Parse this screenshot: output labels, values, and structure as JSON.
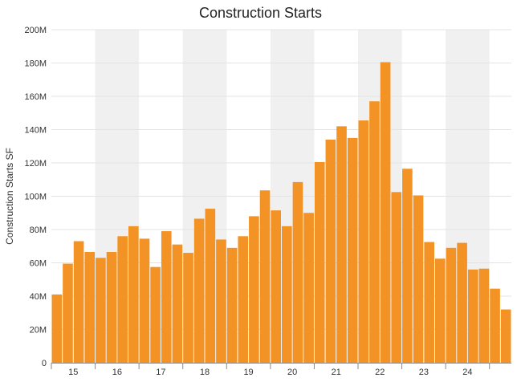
{
  "chart_data": {
    "type": "bar",
    "title": "Construction Starts",
    "xlabel": "",
    "ylabel": "Construction Starts SF",
    "ylim": [
      0,
      200
    ],
    "y_unit_suffix": "M",
    "y_ticks": [
      "0",
      "20M",
      "40M",
      "60M",
      "80M",
      "100M",
      "120M",
      "140M",
      "160M",
      "180M",
      "200M"
    ],
    "x_year_labels": [
      "15",
      "16",
      "17",
      "18",
      "19",
      "20",
      "21",
      "22",
      "23",
      "24"
    ],
    "quarters_per_year": 4,
    "grid": true,
    "alternating_year_bands": true,
    "bar_color": "#f39325",
    "band_color": "#f0f0f0",
    "series": [
      {
        "values": [
          41,
          59.5,
          73,
          66.5,
          63,
          66.5,
          76,
          82,
          74.5,
          57.5,
          79,
          71,
          66,
          86.5,
          92.5,
          74,
          69,
          76,
          88,
          103.5,
          91.5,
          82,
          108.5,
          90,
          120.5,
          134,
          142,
          135,
          145.5,
          157,
          180.5,
          102.5,
          116.5,
          100.5,
          72.5,
          62.5,
          69,
          72,
          56,
          56.5,
          44.5,
          32
        ]
      }
    ]
  }
}
